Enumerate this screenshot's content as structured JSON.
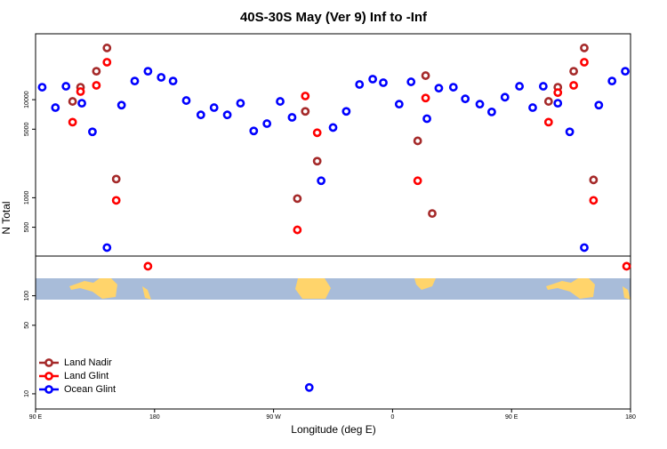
{
  "chart_data": {
    "type": "scatter",
    "title": "40S-30S May (Ver 9)   Inf to -Inf",
    "x_label": "Longitude (deg E)",
    "y_label": "N Total",
    "xlim": [
      90,
      540
    ],
    "ylim": [
      7,
      47000
    ],
    "log_y": true,
    "legend": "bottom-left",
    "xticks": [
      {
        "value": 90,
        "label": "90 E"
      },
      {
        "value": 180,
        "label": "180"
      },
      {
        "value": 270,
        "label": "90 W"
      },
      {
        "value": 360,
        "label": "0"
      },
      {
        "value": 450,
        "label": "90 E"
      },
      {
        "value": 540,
        "label": "180"
      }
    ],
    "yticks": [
      10,
      50,
      100,
      500,
      1000,
      5000,
      10000
    ],
    "series": [
      {
        "name": "Land Nadir",
        "color": "#a52a2a",
        "x": [
          118,
          124,
          136,
          144,
          151,
          288,
          294,
          303,
          379,
          385,
          390,
          478,
          485,
          497,
          505,
          512
        ],
        "values": [
          9600,
          13400,
          19500,
          33700,
          1550,
          980,
          7600,
          2360,
          3800,
          17600,
          690,
          9600,
          13400,
          19500,
          33700,
          1520
        ]
      },
      {
        "name": "Land Glint",
        "color": "#ff0000",
        "x": [
          118,
          124,
          136,
          144,
          151,
          175,
          288,
          294,
          303,
          379,
          385,
          478,
          485,
          497,
          505,
          512,
          537
        ],
        "values": [
          5900,
          12100,
          14000,
          24100,
          940,
          200,
          470,
          10900,
          4600,
          1490,
          10400,
          5900,
          11800,
          14000,
          24100,
          940,
          200
        ]
      },
      {
        "name": "Ocean Glint",
        "color": "#0000ff",
        "x": [
          95,
          105,
          113,
          125,
          133,
          144,
          155,
          165,
          175,
          185,
          194,
          204,
          215,
          225,
          235,
          245,
          255,
          265,
          275,
          284,
          297,
          306,
          315,
          325,
          335,
          345,
          353,
          365,
          374,
          386,
          395,
          406,
          415,
          426,
          435,
          445,
          456,
          466,
          474,
          485,
          494,
          505,
          516,
          526,
          536
        ],
        "values": [
          13400,
          8300,
          13700,
          9200,
          4700,
          310,
          8800,
          15500,
          19500,
          16900,
          15500,
          9800,
          7000,
          8300,
          7000,
          9200,
          4800,
          5700,
          9600,
          6600,
          11.6,
          1490,
          5200,
          7600,
          14300,
          16200,
          14900,
          9000,
          15200,
          6400,
          13100,
          13400,
          10200,
          9000,
          7500,
          10600,
          13700,
          8300,
          13700,
          9200,
          4700,
          310,
          8800,
          15500,
          19500
        ]
      }
    ]
  }
}
